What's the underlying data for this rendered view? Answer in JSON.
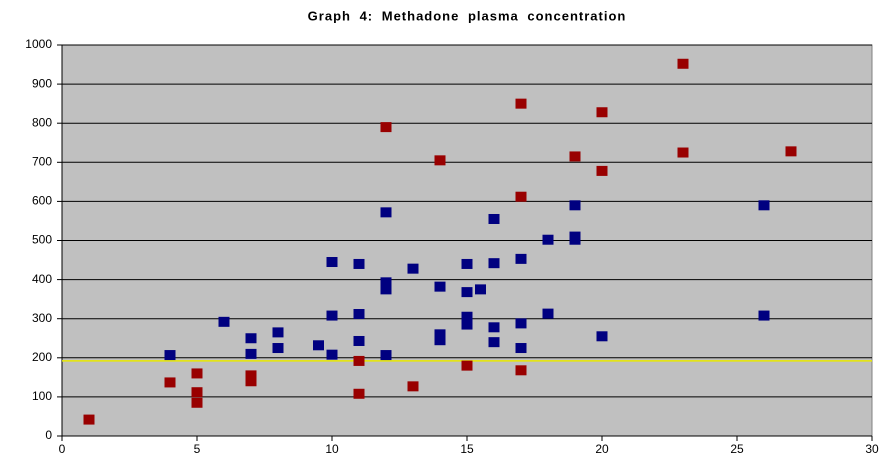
{
  "chart_data": {
    "type": "scatter",
    "title": "Graph 4: Methadone plasma concentration",
    "xlim": [
      0,
      30
    ],
    "xticks": [
      0,
      5,
      10,
      15,
      20,
      25,
      30
    ],
    "ylim": [
      0,
      1000
    ],
    "yticks": [
      0,
      100,
      200,
      300,
      400,
      500,
      600,
      700,
      800,
      900,
      1000
    ],
    "grid": true,
    "background": "#c0c0c0",
    "reference_line": {
      "value": 192,
      "color": "#e8e800"
    },
    "series": [
      {
        "color": "#990000",
        "x": [
          1,
          4,
          5,
          5,
          5,
          7,
          7,
          11,
          11,
          12,
          13,
          14,
          15,
          17,
          17,
          17,
          19,
          20,
          20,
          23,
          23,
          27
        ],
        "values": [
          42,
          137,
          160,
          112,
          85,
          155,
          140,
          192,
          108,
          790,
          127,
          705,
          180,
          850,
          612,
          168,
          715,
          828,
          678,
          952,
          725,
          728
        ]
      },
      {
        "color": "#000080",
        "x": [
          4,
          6,
          7,
          7,
          8,
          8,
          9.5,
          10,
          10,
          10,
          11,
          11,
          11,
          12,
          12,
          12,
          12,
          13,
          14,
          14,
          14,
          15,
          15,
          15,
          15,
          15.5,
          16,
          16,
          16,
          16,
          17,
          17,
          17,
          18,
          18,
          19,
          19,
          19,
          20,
          26,
          26
        ],
        "values": [
          207,
          292,
          250,
          210,
          265,
          225,
          232,
          445,
          308,
          208,
          440,
          312,
          243,
          572,
          393,
          375,
          207,
          428,
          382,
          260,
          245,
          440,
          368,
          305,
          285,
          375,
          555,
          442,
          278,
          240,
          453,
          288,
          225,
          502,
          313,
          590,
          510,
          502,
          255,
          590,
          308
        ]
      }
    ]
  }
}
